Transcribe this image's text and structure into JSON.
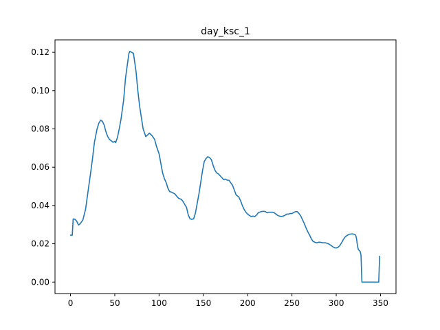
{
  "chart_data": {
    "type": "line",
    "title": "day_ksc_1",
    "xlabel": "",
    "ylabel": "",
    "xlim": [
      -17.5,
      367.5
    ],
    "ylim": [
      -0.006,
      0.1265
    ],
    "xticks": [
      0,
      50,
      100,
      150,
      200,
      250,
      300,
      350
    ],
    "yticks": [
      0.0,
      0.02,
      0.04,
      0.06,
      0.08,
      0.1,
      0.12
    ],
    "ytick_labels": [
      "0.00",
      "0.02",
      "0.04",
      "0.06",
      "0.08",
      "0.10",
      "0.12"
    ],
    "grid": false,
    "series": [
      {
        "color": "#1f77b4",
        "points": [
          [
            0,
            0.0245
          ],
          [
            2,
            0.0245
          ],
          [
            3,
            0.033
          ],
          [
            5,
            0.0328
          ],
          [
            7,
            0.0318
          ],
          [
            9,
            0.0298
          ],
          [
            11,
            0.0305
          ],
          [
            14,
            0.0325
          ],
          [
            17,
            0.038
          ],
          [
            20,
            0.048
          ],
          [
            23,
            0.058
          ],
          [
            25,
            0.065
          ],
          [
            27,
            0.073
          ],
          [
            30,
            0.08
          ],
          [
            32,
            0.083
          ],
          [
            34,
            0.0845
          ],
          [
            36,
            0.084
          ],
          [
            38,
            0.082
          ],
          [
            40,
            0.0785
          ],
          [
            42,
            0.076
          ],
          [
            44,
            0.0745
          ],
          [
            46,
            0.0738
          ],
          [
            48,
            0.073
          ],
          [
            50,
            0.0735
          ],
          [
            51,
            0.0728
          ],
          [
            53,
            0.0755
          ],
          [
            55,
            0.08
          ],
          [
            57,
            0.085
          ],
          [
            60,
            0.095
          ],
          [
            62,
            0.106
          ],
          [
            64,
            0.113
          ],
          [
            66,
            0.1195
          ],
          [
            67,
            0.1205
          ],
          [
            69,
            0.12
          ],
          [
            71,
            0.1195
          ],
          [
            72,
            0.1165
          ],
          [
            74,
            0.11
          ],
          [
            76,
            0.1
          ],
          [
            78,
            0.092
          ],
          [
            80,
            0.086
          ],
          [
            82,
            0.08
          ],
          [
            85,
            0.076
          ],
          [
            87,
            0.0768
          ],
          [
            89,
            0.0778
          ],
          [
            92,
            0.0765
          ],
          [
            95,
            0.0745
          ],
          [
            97,
            0.071
          ],
          [
            100,
            0.067
          ],
          [
            102,
            0.062
          ],
          [
            104,
            0.057
          ],
          [
            106,
            0.054
          ],
          [
            108,
            0.052
          ],
          [
            110,
            0.049
          ],
          [
            112,
            0.0472
          ],
          [
            114,
            0.047
          ],
          [
            116,
            0.0465
          ],
          [
            118,
            0.046
          ],
          [
            120,
            0.0448
          ],
          [
            122,
            0.0438
          ],
          [
            125,
            0.0432
          ],
          [
            127,
            0.0422
          ],
          [
            129,
            0.0405
          ],
          [
            131,
            0.039
          ],
          [
            133,
            0.035
          ],
          [
            135,
            0.033
          ],
          [
            137,
            0.0328
          ],
          [
            139,
            0.033
          ],
          [
            141,
            0.036
          ],
          [
            143,
            0.041
          ],
          [
            145,
            0.046
          ],
          [
            147,
            0.052
          ],
          [
            149,
            0.058
          ],
          [
            151,
            0.063
          ],
          [
            153,
            0.0645
          ],
          [
            155,
            0.0655
          ],
          [
            157,
            0.065
          ],
          [
            159,
            0.064
          ],
          [
            161,
            0.061
          ],
          [
            163,
            0.0585
          ],
          [
            165,
            0.057
          ],
          [
            167,
            0.0565
          ],
          [
            169,
            0.0555
          ],
          [
            171,
            0.0545
          ],
          [
            173,
            0.0535
          ],
          [
            175,
            0.0538
          ],
          [
            177,
            0.0532
          ],
          [
            179,
            0.0532
          ],
          [
            181,
            0.0518
          ],
          [
            183,
            0.0505
          ],
          [
            185,
            0.048
          ],
          [
            187,
            0.0455
          ],
          [
            190,
            0.0445
          ],
          [
            192,
            0.0425
          ],
          [
            194,
            0.04
          ],
          [
            196,
            0.038
          ],
          [
            198,
            0.0365
          ],
          [
            200,
            0.0355
          ],
          [
            202,
            0.0348
          ],
          [
            204,
            0.0342
          ],
          [
            206,
            0.0345
          ],
          [
            208,
            0.0342
          ],
          [
            210,
            0.035
          ],
          [
            212,
            0.0362
          ],
          [
            215,
            0.0368
          ],
          [
            218,
            0.037
          ],
          [
            220,
            0.0368
          ],
          [
            222,
            0.0362
          ],
          [
            225,
            0.0365
          ],
          [
            228,
            0.0365
          ],
          [
            230,
            0.0362
          ],
          [
            232,
            0.0355
          ],
          [
            234,
            0.0348
          ],
          [
            236,
            0.0345
          ],
          [
            238,
            0.0342
          ],
          [
            240,
            0.0345
          ],
          [
            242,
            0.0348
          ],
          [
            244,
            0.0355
          ],
          [
            246,
            0.0355
          ],
          [
            248,
            0.0358
          ],
          [
            250,
            0.0358
          ],
          [
            252,
            0.0363
          ],
          [
            254,
            0.0368
          ],
          [
            256,
            0.0368
          ],
          [
            258,
            0.0358
          ],
          [
            260,
            0.0345
          ],
          [
            262,
            0.0325
          ],
          [
            264,
            0.0305
          ],
          [
            266,
            0.0282
          ],
          [
            268,
            0.0262
          ],
          [
            270,
            0.0245
          ],
          [
            272,
            0.0225
          ],
          [
            274,
            0.0212
          ],
          [
            276,
            0.0208
          ],
          [
            278,
            0.0205
          ],
          [
            280,
            0.0208
          ],
          [
            282,
            0.0208
          ],
          [
            285,
            0.0205
          ],
          [
            288,
            0.0205
          ],
          [
            290,
            0.0202
          ],
          [
            292,
            0.0198
          ],
          [
            294,
            0.0192
          ],
          [
            296,
            0.0185
          ],
          [
            298,
            0.018
          ],
          [
            300,
            0.0178
          ],
          [
            302,
            0.0182
          ],
          [
            304,
            0.019
          ],
          [
            306,
            0.0205
          ],
          [
            308,
            0.0222
          ],
          [
            310,
            0.0235
          ],
          [
            312,
            0.0243
          ],
          [
            315,
            0.025
          ],
          [
            318,
            0.0252
          ],
          [
            320,
            0.025
          ],
          [
            322,
            0.0245
          ],
          [
            323,
            0.0225
          ],
          [
            324,
            0.019
          ],
          [
            325,
            0.017
          ],
          [
            327,
            0.016
          ],
          [
            328,
            0.014
          ],
          [
            329,
            0.0
          ],
          [
            333,
            0.0
          ],
          [
            340,
            0.0
          ],
          [
            346,
            0.0
          ],
          [
            348,
            0.0
          ],
          [
            349,
            0.0135
          ]
        ]
      }
    ]
  }
}
